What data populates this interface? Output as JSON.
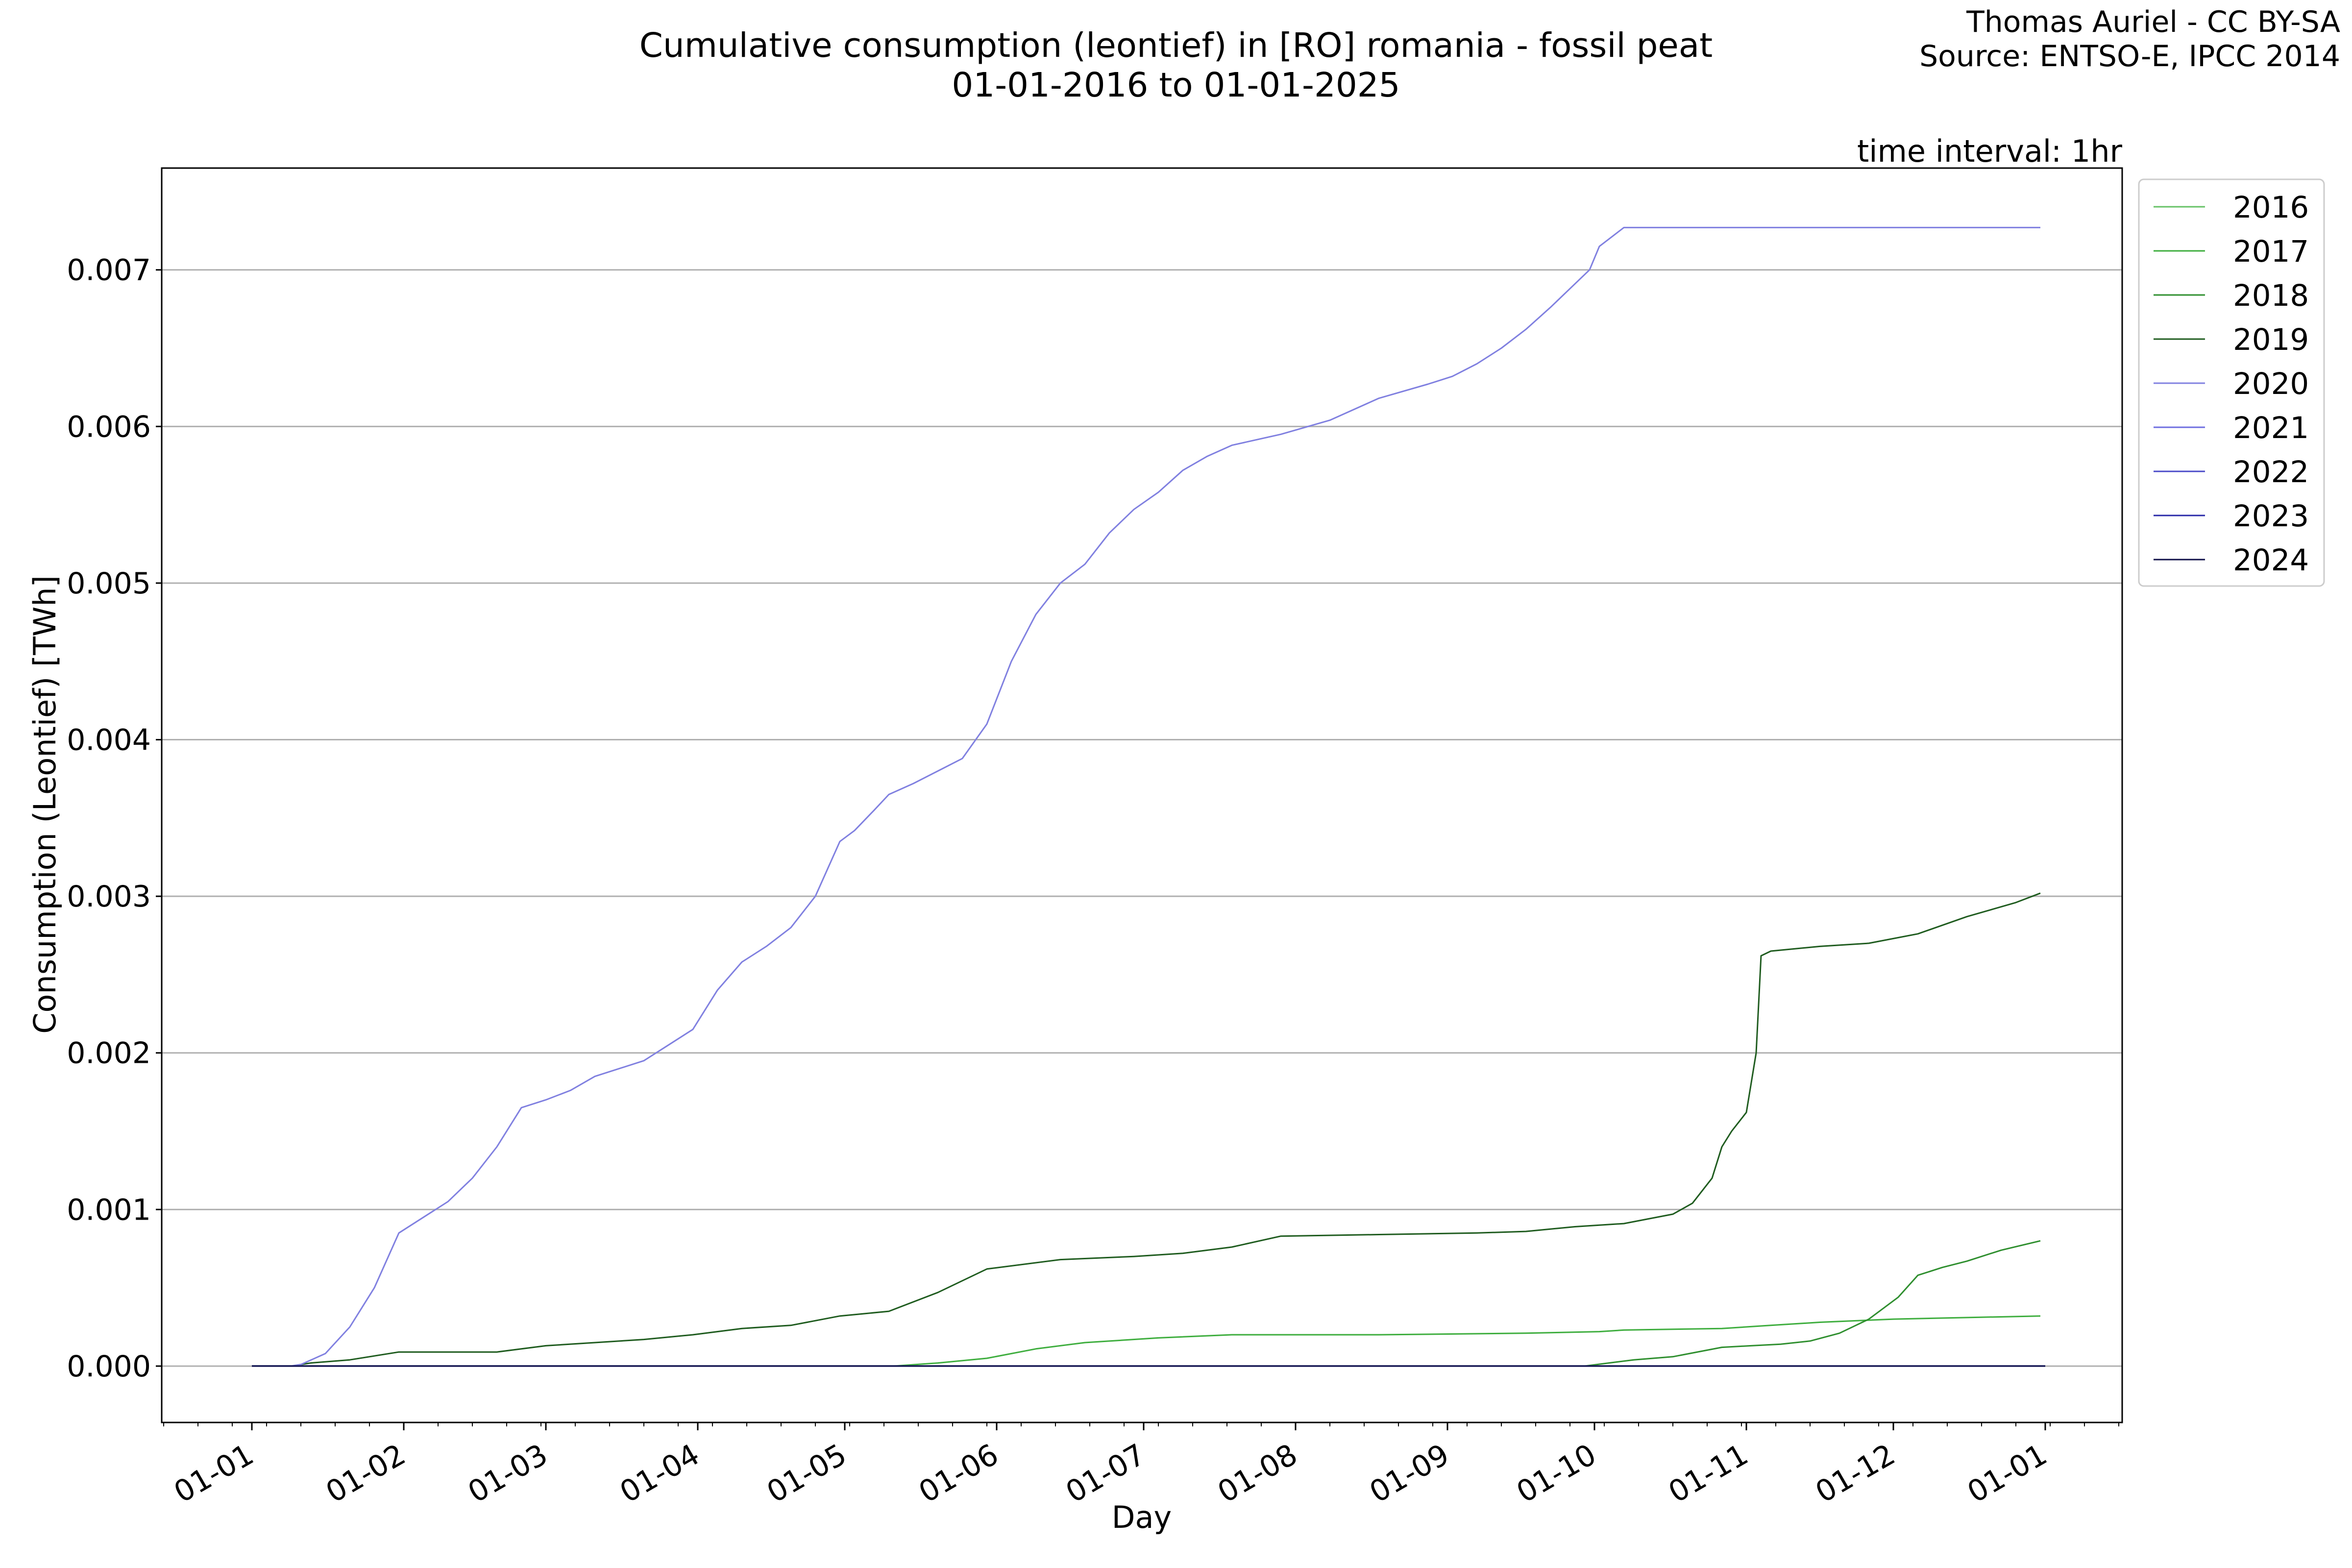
{
  "header": {
    "title_line1": "Cumulative consumption (leontief) in [RO] romania - fossil peat",
    "title_line2": "01-01-2016 to 01-01-2025",
    "credit_line1": "Thomas Auriel - CC BY-SA",
    "credit_line2": "Source: ENTSO-E, IPCC 2014",
    "time_interval": "time interval: 1hr"
  },
  "chart_data": {
    "type": "line",
    "title": "Cumulative consumption (leontief) in [RO] romania - fossil peat\n01-01-2016 to 01-01-2025",
    "xlabel": "Day",
    "ylabel": "Consumption (Leontief) [TWh]",
    "x_tick_labels": [
      "01-01",
      "01-02",
      "01-03",
      "01-04",
      "01-05",
      "01-06",
      "01-07",
      "01-08",
      "01-09",
      "01-10",
      "01-11",
      "01-12",
      "01-01"
    ],
    "y_ticks": [
      0.0,
      0.001,
      0.002,
      0.003,
      0.004,
      0.005,
      0.006,
      0.007
    ],
    "y_tick_labels": [
      "0.000",
      "0.001",
      "0.002",
      "0.003",
      "0.004",
      "0.005",
      "0.006",
      "0.007"
    ],
    "xlim": [
      "12-14",
      "01-18 (next year)"
    ],
    "ylim": [
      -0.00036,
      0.00765
    ],
    "grid": "horizontal",
    "legend_position": "outside-right-top",
    "x_unit": "day of year (01-01 = day 0)",
    "series": [
      {
        "name": "2016",
        "color": "#66c266",
        "x": [
          0,
          366
        ],
        "y": [
          0.0,
          0.0
        ]
      },
      {
        "name": "2017",
        "color": "#3fae3f",
        "x": [
          0,
          131,
          140,
          150,
          160,
          170,
          185,
          200,
          230,
          260,
          275,
          280,
          300,
          310,
          320,
          335,
          350,
          365
        ],
        "y": [
          0.0,
          0.0,
          2e-05,
          5e-05,
          0.00011,
          0.00015,
          0.00018,
          0.0002,
          0.0002,
          0.00021,
          0.00022,
          0.00023,
          0.00024,
          0.00026,
          0.00028,
          0.0003,
          0.00031,
          0.00032
        ]
      },
      {
        "name": "2018",
        "color": "#2f8f2f",
        "x": [
          0,
          272,
          282,
          290,
          300,
          306,
          312,
          318,
          324,
          330,
          336,
          340,
          345,
          350,
          357,
          365
        ],
        "y": [
          0.0,
          0.0,
          4e-05,
          6e-05,
          0.00012,
          0.00013,
          0.00014,
          0.00016,
          0.00021,
          0.0003,
          0.00044,
          0.00058,
          0.00063,
          0.00067,
          0.00074,
          0.0008
        ]
      },
      {
        "name": "2019",
        "color": "#1f5c1f",
        "x": [
          0,
          8,
          12,
          20,
          30,
          50,
          60,
          70,
          80,
          90,
          100,
          110,
          120,
          130,
          140,
          150,
          165,
          180,
          190,
          200,
          210,
          230,
          250,
          260,
          270,
          280,
          290,
          294,
          298,
          300,
          302,
          304,
          305,
          307,
          308,
          310,
          320,
          330,
          340,
          350,
          360,
          365
        ],
        "y": [
          0.0,
          0.0,
          2e-05,
          4e-05,
          9e-05,
          9e-05,
          0.00013,
          0.00015,
          0.00017,
          0.0002,
          0.00024,
          0.00026,
          0.00032,
          0.00035,
          0.00047,
          0.00062,
          0.00068,
          0.0007,
          0.00072,
          0.00076,
          0.00083,
          0.00084,
          0.00085,
          0.00086,
          0.00089,
          0.00091,
          0.00097,
          0.00104,
          0.0012,
          0.0014,
          0.0015,
          0.00158,
          0.00162,
          0.002,
          0.00262,
          0.00265,
          0.00268,
          0.0027,
          0.00276,
          0.00287,
          0.00296,
          0.00302
        ]
      },
      {
        "name": "2020",
        "color": "#8080e0",
        "x": [
          0,
          8,
          10,
          15,
          20,
          25,
          30,
          35,
          40,
          45,
          50,
          55,
          60,
          65,
          70,
          75,
          80,
          85,
          90,
          95,
          100,
          105,
          110,
          115,
          120,
          123,
          127,
          130,
          135,
          140,
          145,
          150,
          155,
          160,
          165,
          170,
          175,
          180,
          185,
          190,
          195,
          200,
          210,
          220,
          230,
          240,
          245,
          250,
          255,
          260,
          265,
          269,
          273,
          275,
          280,
          290,
          300,
          310,
          320,
          330,
          340,
          350,
          360,
          365
        ],
        "y": [
          0.0,
          0.0,
          1e-05,
          8e-05,
          0.00025,
          0.0005,
          0.00085,
          0.00095,
          0.00105,
          0.0012,
          0.0014,
          0.00165,
          0.0017,
          0.00176,
          0.00185,
          0.0019,
          0.00195,
          0.00205,
          0.00215,
          0.0024,
          0.00258,
          0.00268,
          0.0028,
          0.003,
          0.00335,
          0.00342,
          0.00355,
          0.00365,
          0.00372,
          0.0038,
          0.00388,
          0.0041,
          0.0045,
          0.0048,
          0.005,
          0.00512,
          0.00532,
          0.00547,
          0.00558,
          0.00572,
          0.00581,
          0.00588,
          0.00595,
          0.00604,
          0.00618,
          0.00627,
          0.00632,
          0.0064,
          0.0065,
          0.00662,
          0.00676,
          0.00688,
          0.007,
          0.00715,
          0.00727,
          0.00727,
          0.00727,
          0.00727,
          0.00727,
          0.00727,
          0.00727,
          0.00727,
          0.00727,
          0.00727
        ]
      },
      {
        "name": "2021",
        "color": "#6e6ee0",
        "x": [
          0,
          366
        ],
        "y": [
          0.0,
          0.0
        ]
      },
      {
        "name": "2022",
        "color": "#4b4bc8",
        "x": [
          0,
          366
        ],
        "y": [
          0.0,
          0.0
        ]
      },
      {
        "name": "2023",
        "color": "#2828a8",
        "x": [
          0,
          366
        ],
        "y": [
          0.0,
          0.0
        ]
      },
      {
        "name": "2024",
        "color": "#10104a",
        "x": [
          0,
          366
        ],
        "y": [
          0.0,
          0.0
        ]
      }
    ]
  }
}
